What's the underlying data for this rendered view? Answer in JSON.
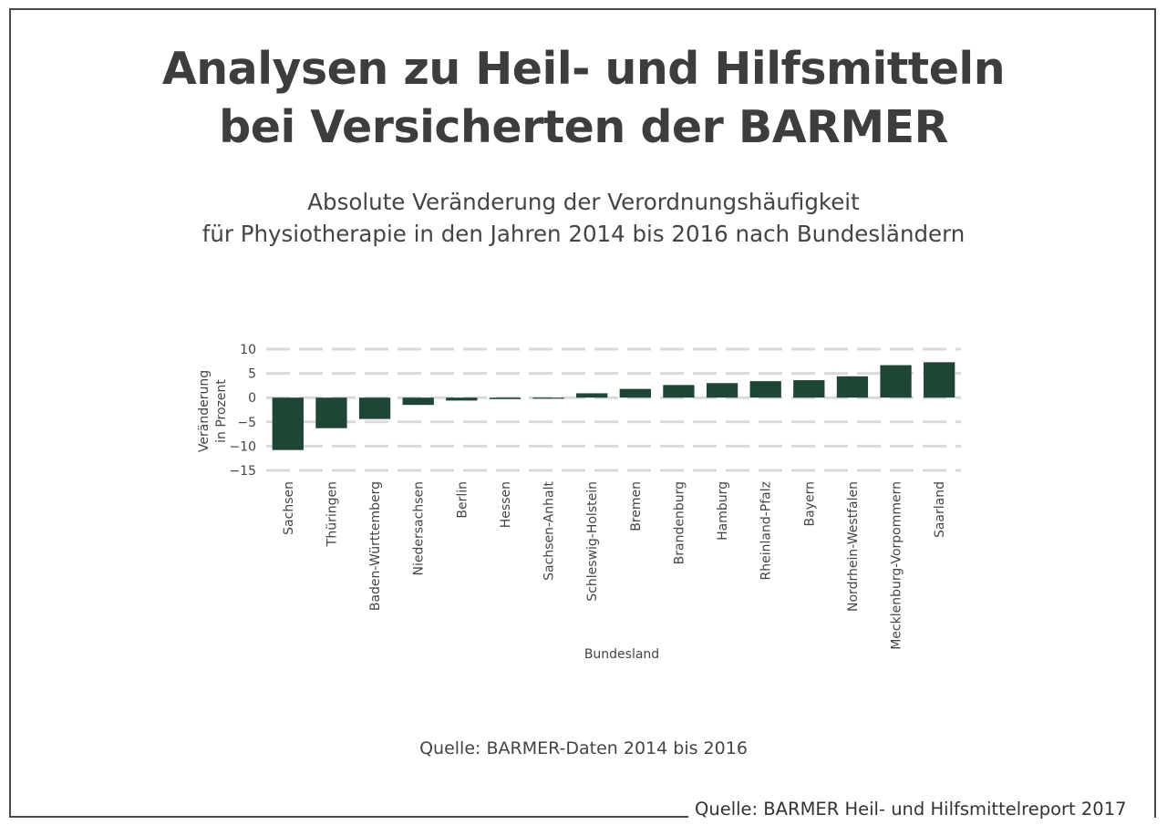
{
  "header": {
    "title_line1": "Analysen zu Heil- und Hilfsmitteln",
    "title_line2": "bei Versicherten der BARMER",
    "subtitle_line1": "Absolute Veränderung der Verordnungshäufigkeit",
    "subtitle_line2": "für Physiotherapie in den Jahren 2014 bis 2016 nach Bundesländern"
  },
  "chart_data": {
    "type": "bar",
    "categories": [
      "Sachsen",
      "Thüringen",
      "Baden-Württemberg",
      "Niedersachsen",
      "Berlin",
      "Hessen",
      "Sachsen-Anhalt",
      "Schleswig-Holstein",
      "Bremen",
      "Brandenburg",
      "Hamburg",
      "Rheinland-Pfalz",
      "Bayern",
      "Nordrhein-Westfalen",
      "Mecklenburg-Vorpommern",
      "Saarland"
    ],
    "values": [
      -10.8,
      -6.3,
      -4.4,
      -1.5,
      -0.6,
      -0.3,
      -0.1,
      0.9,
      1.8,
      2.6,
      3.0,
      3.4,
      3.6,
      4.4,
      6.7,
      7.3
    ],
    "xlabel": "Bundesland",
    "ylabel_line1": "Veränderung",
    "ylabel_line2": "in Prozent",
    "ylim": [
      -15,
      10
    ],
    "yticks": [
      10,
      5,
      0,
      -5,
      -10,
      -15
    ],
    "grid": true,
    "bar_color": "#1f4535"
  },
  "sources": {
    "inner": "Quelle: BARMER-Daten 2014 bis 2016",
    "outer": "Quelle: BARMER Heil- und Hilfsmittelreport 2017"
  }
}
